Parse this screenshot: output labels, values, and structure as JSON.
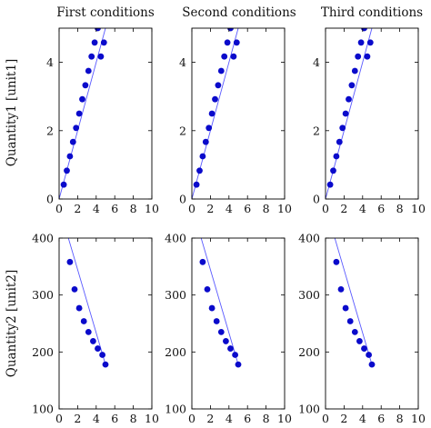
{
  "colors": {
    "marker": "#0a0acb",
    "line": "#5a5aff",
    "frame": "#000000"
  },
  "chart_data": {
    "type": "scatter",
    "column_titles": [
      "First conditions",
      "Second conditions",
      "Third conditions"
    ],
    "rows": [
      {
        "ylabel": "Quantity1 [unit1]",
        "xlim": [
          0,
          10
        ],
        "ylim": [
          0,
          5
        ],
        "xticks": [
          0,
          2,
          4,
          6,
          8,
          10
        ],
        "yticks": [
          0,
          2,
          4
        ],
        "line": {
          "x": [
            0,
            5.0
          ],
          "y": [
            0,
            5.0
          ]
        },
        "points": {
          "x": [
            0.5,
            0.833,
            1.167,
            1.5,
            1.833,
            2.167,
            2.5,
            2.833,
            3.167,
            3.5,
            3.833,
            4.167,
            4.5,
            4.833
          ],
          "y": [
            0.42,
            0.83,
            1.25,
            1.67,
            2.08,
            2.5,
            2.92,
            3.33,
            3.75,
            4.17,
            4.58,
            5.0,
            4.17,
            4.58
          ]
        }
      },
      {
        "ylabel": "Quantity2 [unit2]",
        "xlim": [
          0,
          10
        ],
        "ylim": [
          100,
          400
        ],
        "xticks": [
          0,
          2,
          4,
          6,
          8,
          10
        ],
        "yticks": [
          100,
          200,
          300,
          400
        ],
        "line": {
          "x": [
            1.0,
            5.0
          ],
          "y": [
            400,
            178
          ]
        },
        "points": {
          "x": [
            1.167,
            1.667,
            2.167,
            2.667,
            3.167,
            3.667,
            4.167,
            4.667,
            5.0
          ],
          "y": [
            358,
            310,
            277,
            254,
            235,
            219,
            206,
            195,
            178
          ]
        }
      }
    ]
  }
}
